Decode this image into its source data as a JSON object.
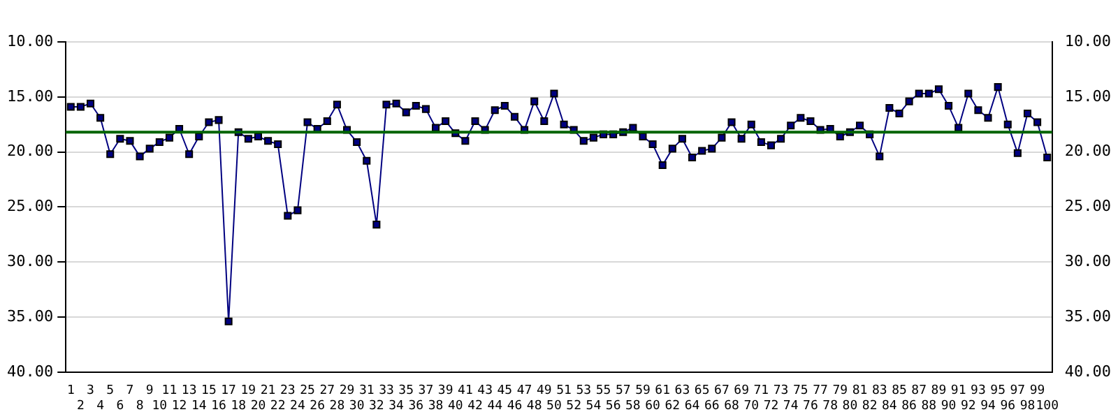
{
  "chart_data": {
    "type": "line",
    "categories": [
      "1",
      "2",
      "3",
      "4",
      "5",
      "6",
      "7",
      "8",
      "9",
      "10",
      "11",
      "12",
      "13",
      "14",
      "15",
      "16",
      "17",
      "18",
      "19",
      "20",
      "21",
      "22",
      "23",
      "24",
      "25",
      "26",
      "27",
      "28",
      "29",
      "30",
      "31",
      "32",
      "33",
      "34",
      "35",
      "36",
      "37",
      "38",
      "39",
      "40",
      "41",
      "42",
      "43",
      "44",
      "45",
      "46",
      "47",
      "48",
      "49",
      "50",
      "51",
      "52",
      "53",
      "54",
      "55",
      "56",
      "57",
      "58",
      "59",
      "60",
      "61",
      "62",
      "63",
      "64",
      "65",
      "66",
      "67",
      "68",
      "69",
      "70",
      "71",
      "72",
      "73",
      "74",
      "75",
      "76",
      "77",
      "78",
      "79",
      "80",
      "81",
      "82",
      "83",
      "84",
      "85",
      "86",
      "87",
      "88",
      "89",
      "90",
      "91",
      "92",
      "93",
      "94",
      "95",
      "96",
      "97",
      "98",
      "99",
      "100"
    ],
    "series": [
      {
        "color": "#000080",
        "values": [
          15.9,
          15.9,
          15.6,
          16.9,
          20.2,
          18.8,
          19.0,
          20.4,
          19.7,
          19.1,
          18.7,
          17.9,
          20.2,
          18.6,
          17.3,
          17.1,
          35.4,
          18.2,
          18.8,
          18.6,
          19.0,
          19.3,
          25.8,
          25.3,
          17.3,
          17.9,
          17.2,
          15.7,
          18.0,
          19.1,
          20.8,
          26.6,
          15.7,
          15.6,
          16.4,
          15.8,
          16.1,
          17.8,
          17.2,
          18.3,
          19.0,
          17.2,
          18.0,
          16.2,
          15.8,
          16.8,
          18.0,
          15.4,
          17.2,
          14.7,
          17.5,
          18.0,
          19.0,
          18.7,
          18.4,
          18.4,
          18.2,
          17.8,
          18.6,
          19.3,
          21.2,
          19.7,
          18.8,
          20.5,
          19.9,
          19.7,
          18.7,
          17.3,
          18.8,
          17.5,
          19.1,
          19.4,
          18.8,
          17.6,
          16.9,
          17.2,
          18.0,
          17.9,
          18.6,
          18.2,
          17.6,
          18.4,
          20.4,
          16.0,
          16.5,
          15.4,
          14.7,
          14.7,
          14.3,
          15.8,
          17.8,
          14.7,
          16.2,
          16.9,
          14.1,
          17.5,
          20.1,
          16.5,
          17.3,
          20.5
        ]
      }
    ],
    "ylim": [
      40,
      10
    ],
    "yticks": [
      {
        "value": 10,
        "label": "10.00"
      },
      {
        "value": 15,
        "label": "15.00"
      },
      {
        "value": 20,
        "label": "20.00"
      },
      {
        "value": 25,
        "label": "25.00"
      },
      {
        "value": 30,
        "label": "30.00"
      },
      {
        "value": 35,
        "label": "35.00"
      },
      {
        "value": 40,
        "label": "40.00"
      }
    ],
    "y2lim": [
      40,
      10
    ],
    "y2ticks": [
      {
        "value": 10,
        "label": "10.00"
      },
      {
        "value": 15,
        "label": "15.00"
      },
      {
        "value": 20,
        "label": "20.00"
      },
      {
        "value": 25,
        "label": "25.00"
      },
      {
        "value": 30,
        "label": "30.00"
      },
      {
        "value": 35,
        "label": "35.00"
      },
      {
        "value": 40,
        "label": "40.00"
      }
    ],
    "ref_lines": [
      {
        "axis": "y",
        "value": 18.2,
        "color": "#006400"
      }
    ],
    "grid": "y",
    "legend": false,
    "marker": "square",
    "line_style": "solid"
  }
}
